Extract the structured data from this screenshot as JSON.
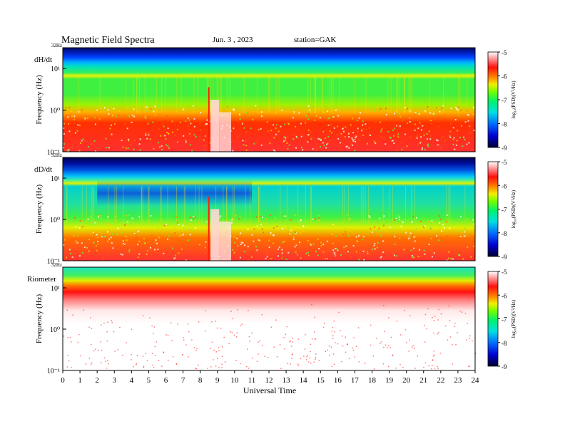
{
  "header": {
    "title": "Magnetic  Field  Spectra",
    "date": "Jun. 3 , 2023",
    "station": "station=GAK"
  },
  "chart_data": {
    "type": "heatmap",
    "xlabel": "Universal Time",
    "x_ticks": [
      "0",
      "1",
      "2",
      "3",
      "4",
      "5",
      "6",
      "7",
      "8",
      "9",
      "10",
      "11",
      "12",
      "13",
      "14",
      "15",
      "16",
      "17",
      "18",
      "19",
      "20",
      "21",
      "22",
      "23",
      "24"
    ],
    "xlim": [
      0,
      24
    ],
    "ylabel": "Frequency (Hz)",
    "y_scale": "log",
    "colorbar": {
      "label": "log₁₀(PSD)(V²/Hz)",
      "ticks": [
        "-5",
        "-6",
        "-7",
        "-8",
        "-9"
      ],
      "range": [
        -9,
        -5
      ],
      "colormap": [
        "#00003c",
        "#0000c8",
        "#0070ff",
        "#00e0e0",
        "#00f070",
        "#60ff00",
        "#f0f000",
        "#ff8000",
        "#ff1010",
        "#ffffff"
      ]
    },
    "panels": [
      {
        "name": "dH/dt",
        "top_label": "32Hz",
        "y_tick_labels": [
          "10¹",
          "10⁰",
          "10⁻¹"
        ],
        "features": "high-frequency band blue/cyan, green mid band, red low frequencies; broadband burst near 8.5-9 UT"
      },
      {
        "name": "dD/dt",
        "top_label": "32Hz",
        "y_tick_labels": [
          "10¹",
          "10⁰",
          "10⁻¹"
        ],
        "features": "blue patch 2-11 UT near 3-8 Hz, red low frequencies; broadband burst near 8.5-9 UT"
      },
      {
        "name": "Riometer",
        "top_label": "32Hz",
        "y_tick_labels": [
          "10¹",
          "10⁰",
          "10⁻¹"
        ],
        "features": "green/yellow/red band at ~10-20 Hz, mostly white below"
      }
    ]
  }
}
